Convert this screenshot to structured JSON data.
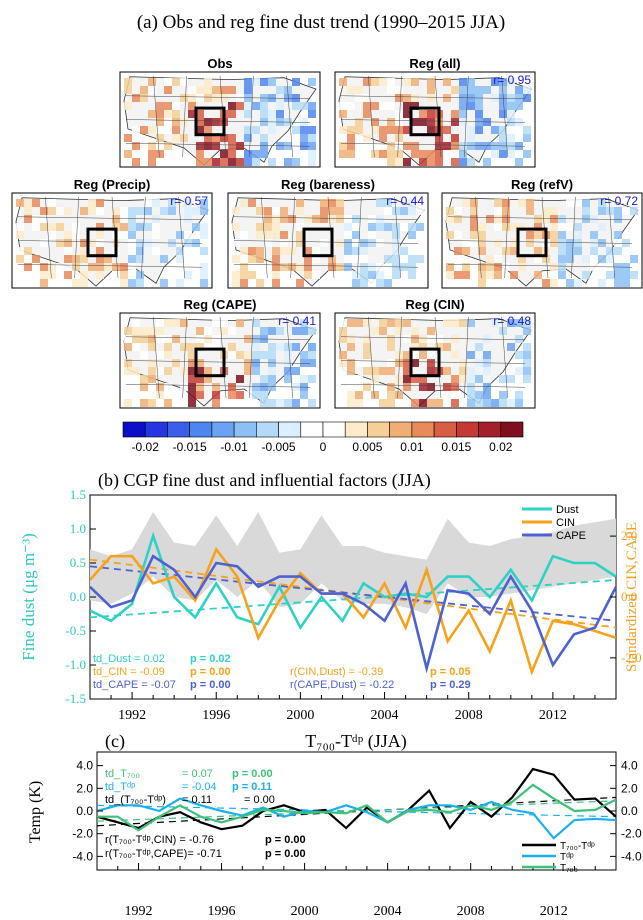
{
  "figure_title": "(a) Obs and  reg fine dust trend (1990–2015 JJA)",
  "maps": [
    {
      "title": "Obs",
      "r": ""
    },
    {
      "title": "Reg (all)",
      "r": "r= 0.95"
    },
    {
      "title": "Reg (Precip)",
      "r": "r= 0.57"
    },
    {
      "title": "Reg (bareness)",
      "r": "r= 0.44"
    },
    {
      "title": "Reg (refV)",
      "r": "r= 0.72"
    },
    {
      "title": "Reg (CAPE)",
      "r": "r= 0.41"
    },
    {
      "title": "Reg (CIN)",
      "r": "r= 0.48"
    }
  ],
  "colorbar": {
    "colors": [
      "#0b0fc8",
      "#2536e0",
      "#3a5fe8",
      "#4f85ee",
      "#6ba3f2",
      "#8cc0f5",
      "#b3daf8",
      "#dcefff",
      "#ffffff",
      "#ffffff",
      "#fdebc9",
      "#f6cf97",
      "#f0ae74",
      "#e88a5a",
      "#d75d45",
      "#c23a33",
      "#a3202a",
      "#7f0f1e"
    ],
    "labels": [
      "-0.02",
      "-0.015",
      "-0.01",
      "-0.005",
      "0",
      "0.005",
      "0.01",
      "0.015",
      "0.02"
    ]
  },
  "panel_b": {
    "title": "(b)     CGP fine dust and influential factors (JJA)",
    "ylabel": "Fine dust (μg m⁻³)",
    "ylabel_right": "Standardized CIN,CAPE",
    "stats": {
      "td_dust": "td_Dust   =  0.02",
      "p_dust": "p  = 0.02",
      "td_cin": "td_CIN   = -0.09",
      "p_cin": "p  = 0.00",
      "td_cape": "td_CAPE = -0.07",
      "p_cape": "p  = 0.00",
      "r_cin": "r(CIN,Dust)   = -0.39",
      "p_rcin": "p  = 0.05",
      "r_cape": "r(CAPE,Dust) = -0.22",
      "p_rcape": "p  = 0.29"
    }
  },
  "panel_c": {
    "title_prefix": "(c)",
    "title": "T₇₀₀-Tᵈᵖ (JJA)",
    "ylabel": "Temp (K)",
    "stats": {
      "td_t700": "td_T₇₀₀",
      "td_t700_val": "=  0.07",
      "td_t700_p": "p  = 0.00",
      "td_tdp": "td_Tᵈᵖ",
      "td_tdp_val": "= -0.04",
      "td_tdp_p": "p  = 0.11",
      "td_diff": "td_(T₇₀₀-Tᵈᵖ)",
      "td_diff_val": "=  0.11",
      "td_diff_p": "= 0.00",
      "r1": "r(T₇₀₀-Tᵈᵖ,CIN)    = -0.76",
      "r1_p": "p  = 0.00",
      "r2": "r(T₇₀₀-Tᵈᵖ,CAPE)= -0.71",
      "r2_p": "p  = 0.00"
    }
  },
  "chart_data": [
    {
      "type": "line",
      "title": "CGP fine dust and influential factors (JJA)",
      "xlabel": "",
      "ylabel": "Fine dust (μg m⁻³)",
      "ylabel_right": "Standardized CIN,CAPE",
      "x": [
        1990,
        1991,
        1992,
        1993,
        1994,
        1995,
        1996,
        1997,
        1998,
        1999,
        2000,
        2001,
        2002,
        2003,
        2004,
        2005,
        2006,
        2007,
        2008,
        2009,
        2010,
        2011,
        2012,
        2013,
        2014,
        2015
      ],
      "xticks": [
        1992,
        1996,
        2000,
        2004,
        2008,
        2012
      ],
      "xlim": [
        1990,
        2015
      ],
      "ylim": [
        -1.5,
        1.5
      ],
      "yticks": [
        "1.5",
        "1.0",
        "0.5",
        "0.0",
        "-0.5",
        "-1.0",
        "-1.5"
      ],
      "yticks_right": [
        "2.0",
        "0.0",
        "-2.0"
      ],
      "ylim_right": [
        -3.35,
        3.35
      ],
      "legend": {
        "position": "top-right",
        "entries": [
          "Dust",
          "CIN",
          "CAPE"
        ]
      },
      "shading_upper": [
        0.7,
        0.6,
        0.7,
        1.25,
        0.8,
        0.75,
        1.2,
        0.75,
        1.25,
        0.65,
        0.7,
        1.2,
        0.75,
        0.75,
        0.65,
        0.6,
        0.55,
        1.15,
        0.8,
        0.75,
        0.85,
        0.9,
        0.95,
        1.05,
        1.1,
        1.15
      ],
      "shading_lower": [
        -0.05,
        -0.1,
        0.05,
        0.3,
        0.0,
        -0.05,
        0.25,
        0.0,
        0.25,
        -0.15,
        -0.1,
        0.2,
        -0.05,
        -0.1,
        -0.1,
        -0.15,
        -0.25,
        0.2,
        0.0,
        0.0,
        0.05,
        0.1,
        0.15,
        0.2,
        0.25,
        0.3
      ],
      "series": [
        {
          "name": "Dust",
          "color": "#2ed1c6",
          "axis": "left",
          "values": [
            -0.2,
            -0.35,
            -0.1,
            0.9,
            0.0,
            -0.3,
            0.2,
            -0.3,
            -0.4,
            0.15,
            -0.45,
            0.0,
            -0.35,
            0.2,
            0.0,
            0.05,
            0.0,
            0.3,
            0.3,
            0.0,
            0.4,
            -0.05,
            0.6,
            0.5,
            0.5,
            0.3
          ]
        },
        {
          "name": "CIN",
          "color": "#f6a21a",
          "axis": "left",
          "values": [
            0.25,
            0.6,
            0.6,
            0.2,
            0.3,
            -0.05,
            0.7,
            0.3,
            -0.6,
            -0.05,
            0.35,
            0.05,
            0.05,
            -0.3,
            0.2,
            -0.45,
            0.4,
            -0.65,
            -0.2,
            -0.8,
            -0.05,
            -1.1,
            -0.35,
            -0.4,
            -0.5,
            -0.6
          ]
        },
        {
          "name": "CAPE",
          "color": "#4d61d2",
          "axis": "left",
          "values": [
            0.15,
            -0.15,
            -0.05,
            0.6,
            0.4,
            0.0,
            0.5,
            0.45,
            0.15,
            0.3,
            0.3,
            0.05,
            0.05,
            -0.1,
            -0.35,
            0.2,
            -1.05,
            0.1,
            0.05,
            -0.25,
            0.3,
            -0.2,
            -1.0,
            -0.55,
            -0.45,
            0.15
          ]
        }
      ],
      "trend_lines": [
        {
          "color": "#2ed1c6",
          "y_start": -0.3,
          "y_end": 0.25
        },
        {
          "color": "#f6a21a",
          "y_start": 0.55,
          "y_end": -0.45
        },
        {
          "color": "#4d61d2",
          "y_start": 0.45,
          "y_end": -0.35
        }
      ]
    },
    {
      "type": "line",
      "title": "T₇₀₀-Tᵈᵖ (JJA)",
      "xlabel": "",
      "ylabel": "Temp (K)",
      "x": [
        1990,
        1991,
        1992,
        1993,
        1994,
        1995,
        1996,
        1997,
        1998,
        1999,
        2000,
        2001,
        2002,
        2003,
        2004,
        2005,
        2006,
        2007,
        2008,
        2009,
        2010,
        2011,
        2012,
        2013,
        2014,
        2015
      ],
      "xticks": [
        1992,
        1996,
        2000,
        2004,
        2008,
        2012
      ],
      "xlim": [
        1990,
        2015
      ],
      "ylim": [
        -5.2,
        5.2
      ],
      "yticks": [
        "4.0",
        "2.0",
        "0.0",
        "-2.0",
        "-4.0"
      ],
      "legend": {
        "position": "bottom-right",
        "entries": [
          "T₇₀₀-Tᵈᵖ",
          "Tᵈᵖ",
          "T₇₀₀"
        ]
      },
      "series": [
        {
          "name": "T₇₀₀-Tᵈᵖ",
          "color": "#000000",
          "values": [
            -0.5,
            -1.0,
            -1.5,
            -0.5,
            -0.1,
            -1.0,
            -1.6,
            -1.3,
            0.0,
            0.5,
            -0.1,
            0.1,
            -1.5,
            0.3,
            -1.0,
            0.1,
            1.8,
            -1.5,
            0.8,
            -0.5,
            1.2,
            3.7,
            3.2,
            1.0,
            1.1,
            -0.5
          ]
        },
        {
          "name": "Tᵈᵖ",
          "color": "#1ab0ee",
          "values": [
            0.0,
            0.5,
            0.5,
            0.0,
            1.1,
            0.5,
            0.0,
            -0.4,
            0.3,
            -0.5,
            0.0,
            -0.1,
            0.5,
            -0.1,
            -1.0,
            0.1,
            0.5,
            0.5,
            0.1,
            0.8,
            0.1,
            -0.2,
            -2.4,
            -0.8,
            -0.7,
            -0.8
          ]
        },
        {
          "name": "T₇₀₀",
          "color": "#3fc07a",
          "values": [
            -0.5,
            -0.5,
            -1.7,
            -0.5,
            0.5,
            -0.5,
            -1.0,
            -0.5,
            0.1,
            0.0,
            -0.2,
            -0.1,
            -0.2,
            0.5,
            -1.0,
            0.0,
            0.1,
            -0.1,
            0.5,
            0.1,
            0.8,
            2.3,
            1.1,
            0.0,
            0.1,
            1.0
          ]
        }
      ],
      "trend_lines": [
        {
          "color": "#000000",
          "y_start": -1.3,
          "y_end": 1.2
        },
        {
          "color": "#1ab0ee",
          "y_start": 0.5,
          "y_end": -0.5
        },
        {
          "color": "#3fc07a",
          "y_start": -0.9,
          "y_end": 0.9
        }
      ]
    }
  ]
}
